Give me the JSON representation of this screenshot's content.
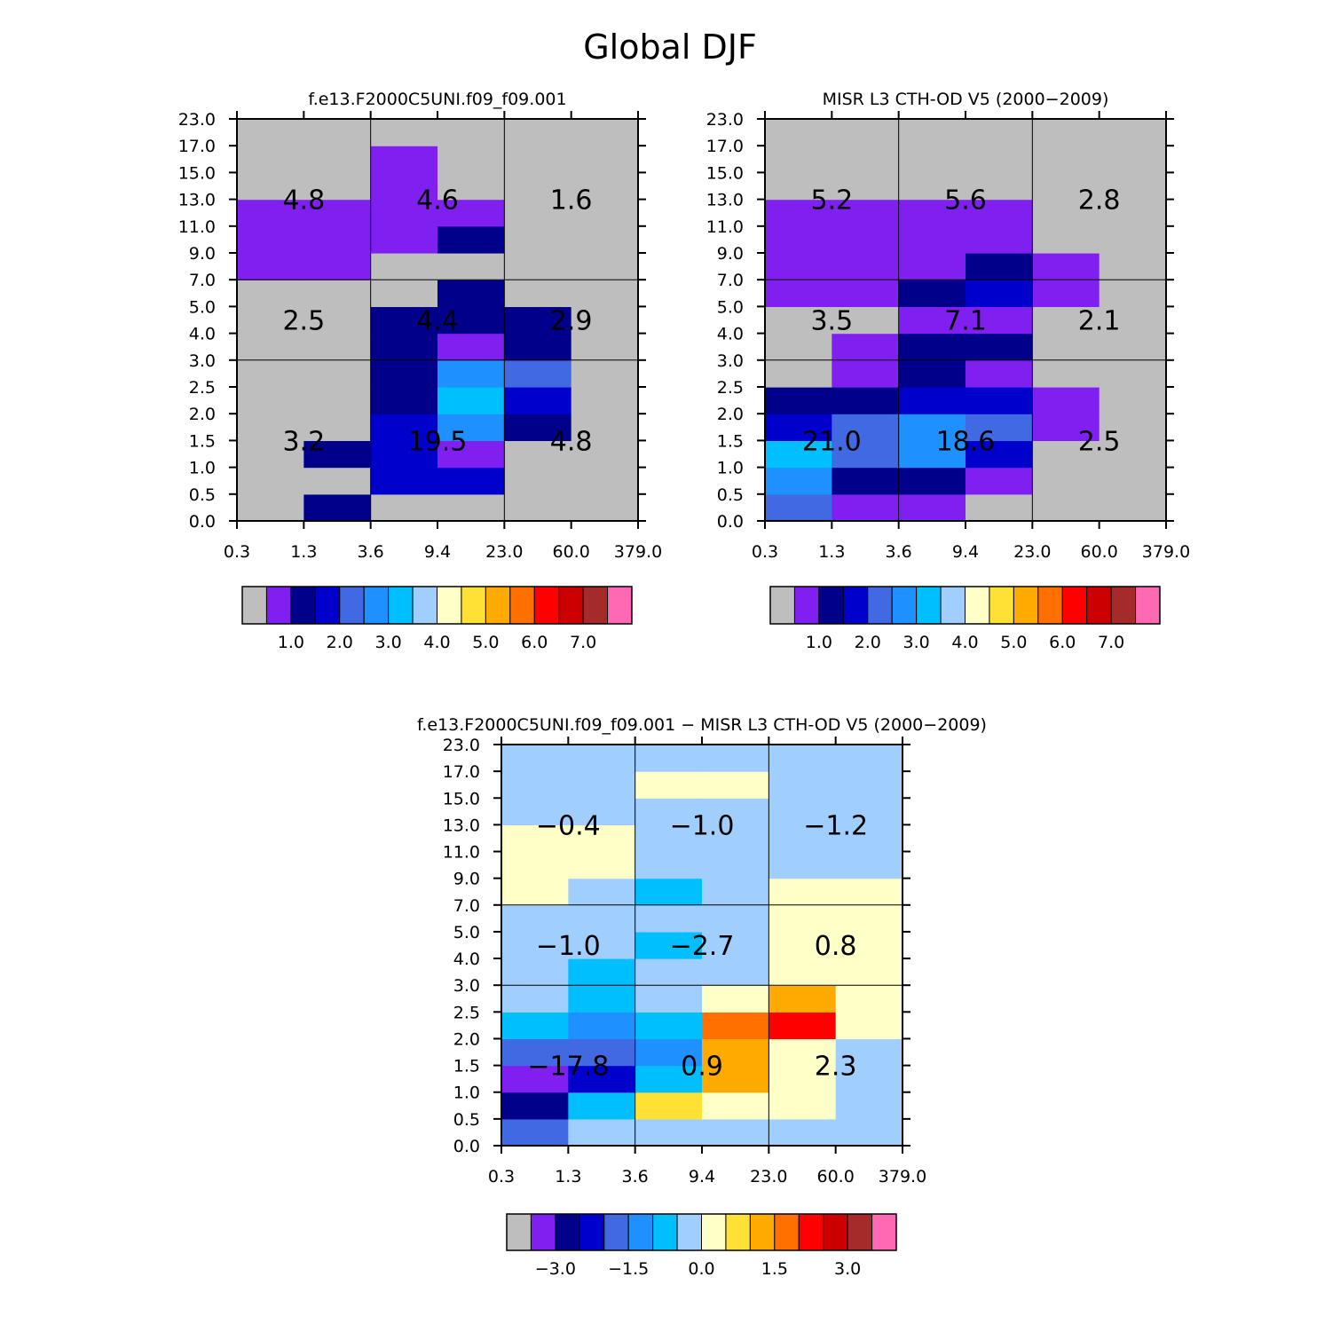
{
  "title": "Global DJF",
  "chart_data": [
    {
      "type": "heatmap",
      "title": "f.e13.F2000C5UNI.f09_f09.001",
      "x_edges": [
        "0.3",
        "1.3",
        "3.6",
        "9.4",
        "23.0",
        "60.0",
        "379.0"
      ],
      "y_edges": [
        "0.0",
        "0.5",
        "1.0",
        "1.5",
        "2.0",
        "2.5",
        "3.0",
        "4.0",
        "5.0",
        "7.0",
        "9.0",
        "11.0",
        "13.0",
        "15.0",
        "17.0",
        "23.0"
      ],
      "cells": [
        [
          0,
          2,
          0,
          0,
          0,
          0
        ],
        [
          0,
          0,
          3,
          3,
          0,
          0
        ],
        [
          0,
          2,
          3,
          1,
          0,
          0
        ],
        [
          0,
          0,
          3,
          5,
          2,
          0
        ],
        [
          0,
          0,
          2,
          6,
          3,
          0
        ],
        [
          0,
          0,
          2,
          5,
          4,
          0
        ],
        [
          0,
          0,
          2,
          1,
          2,
          0
        ],
        [
          0,
          0,
          2,
          2,
          2,
          0
        ],
        [
          0,
          0,
          0,
          2,
          0,
          0
        ],
        [
          1,
          1,
          0,
          0,
          0,
          0
        ],
        [
          1,
          1,
          1,
          2,
          0,
          0
        ],
        [
          1,
          1,
          1,
          1,
          0,
          0
        ],
        [
          0,
          0,
          1,
          0,
          0,
          0
        ],
        [
          0,
          0,
          1,
          0,
          0,
          0
        ],
        [
          0,
          0,
          0,
          0,
          0,
          0
        ]
      ],
      "group_sums": [
        {
          "label": "3.2",
          "col": 0,
          "row": 0
        },
        {
          "label": "19.5",
          "col": 1,
          "row": 0
        },
        {
          "label": "4.8",
          "col": 2,
          "row": 0
        },
        {
          "label": "2.5",
          "col": 0,
          "row": 1
        },
        {
          "label": "4.4",
          "col": 1,
          "row": 1
        },
        {
          "label": "2.9",
          "col": 2,
          "row": 1
        },
        {
          "label": "4.8",
          "col": 0,
          "row": 2
        },
        {
          "label": "4.6",
          "col": 1,
          "row": 2
        },
        {
          "label": "1.6",
          "col": 2,
          "row": 2
        }
      ],
      "colorbar_labels": [
        "1.0",
        "2.0",
        "3.0",
        "4.0",
        "5.0",
        "6.0",
        "7.0"
      ]
    },
    {
      "type": "heatmap",
      "title": "MISR L3 CTH-OD V5 (2000-2009)",
      "x_edges": [
        "0.3",
        "1.3",
        "3.6",
        "9.4",
        "23.0",
        "60.0",
        "379.0"
      ],
      "y_edges": [
        "0.0",
        "0.5",
        "1.0",
        "1.5",
        "2.0",
        "2.5",
        "3.0",
        "4.0",
        "5.0",
        "7.0",
        "9.0",
        "11.0",
        "13.0",
        "15.0",
        "17.0",
        "23.0"
      ],
      "cells": [
        [
          4,
          1,
          1,
          0,
          0,
          0
        ],
        [
          5,
          2,
          2,
          1,
          0,
          0
        ],
        [
          6,
          4,
          5,
          3,
          0,
          0
        ],
        [
          3,
          4,
          5,
          4,
          1,
          0
        ],
        [
          2,
          2,
          3,
          3,
          1,
          0
        ],
        [
          0,
          1,
          2,
          1,
          0,
          0
        ],
        [
          0,
          1,
          2,
          2,
          0,
          0
        ],
        [
          0,
          0,
          1,
          1,
          0,
          0
        ],
        [
          1,
          1,
          2,
          3,
          1,
          0
        ],
        [
          1,
          1,
          1,
          2,
          1,
          0
        ],
        [
          1,
          1,
          1,
          1,
          0,
          0
        ],
        [
          1,
          1,
          1,
          1,
          0,
          0
        ],
        [
          0,
          0,
          0,
          0,
          0,
          0
        ],
        [
          0,
          0,
          0,
          0,
          0,
          0
        ],
        [
          0,
          0,
          0,
          0,
          0,
          0
        ]
      ],
      "group_sums": [
        {
          "label": "21.0",
          "col": 0,
          "row": 0
        },
        {
          "label": "18.6",
          "col": 1,
          "row": 0
        },
        {
          "label": "2.5",
          "col": 2,
          "row": 0
        },
        {
          "label": "3.5",
          "col": 0,
          "row": 1
        },
        {
          "label": "7.1",
          "col": 1,
          "row": 1
        },
        {
          "label": "2.1",
          "col": 2,
          "row": 1
        },
        {
          "label": "5.2",
          "col": 0,
          "row": 2
        },
        {
          "label": "5.6",
          "col": 1,
          "row": 2
        },
        {
          "label": "2.8",
          "col": 2,
          "row": 2
        }
      ],
      "colorbar_labels": [
        "1.0",
        "2.0",
        "3.0",
        "4.0",
        "5.0",
        "6.0",
        "7.0"
      ]
    },
    {
      "type": "heatmap",
      "title": "f.e13.F2000C5UNI.f09_f09.001 - MISR L3 CTH-OD V5 (2000-2009)",
      "x_edges": [
        "0.3",
        "1.3",
        "3.6",
        "9.4",
        "23.0",
        "60.0",
        "379.0"
      ],
      "y_edges": [
        "0.0",
        "0.5",
        "1.0",
        "1.5",
        "2.0",
        "2.5",
        "3.0",
        "4.0",
        "5.0",
        "7.0",
        "9.0",
        "11.0",
        "13.0",
        "15.0",
        "17.0",
        "23.0"
      ],
      "cells": [
        [
          4,
          7,
          7,
          7,
          7,
          7
        ],
        [
          2,
          6,
          9,
          8,
          8,
          7
        ],
        [
          1,
          3,
          6,
          10,
          8,
          7
        ],
        [
          4,
          4,
          5,
          10,
          8,
          7
        ],
        [
          6,
          5,
          6,
          11,
          12,
          8
        ],
        [
          7,
          6,
          7,
          8,
          10,
          8
        ],
        [
          7,
          6,
          7,
          7,
          8,
          8
        ],
        [
          7,
          7,
          6,
          7,
          8,
          8
        ],
        [
          7,
          7,
          7,
          7,
          8,
          8
        ],
        [
          8,
          7,
          6,
          7,
          8,
          8
        ],
        [
          8,
          8,
          7,
          7,
          7,
          7
        ],
        [
          8,
          8,
          7,
          7,
          7,
          7
        ],
        [
          7,
          7,
          7,
          7,
          7,
          7
        ],
        [
          7,
          7,
          8,
          8,
          7,
          7
        ],
        [
          7,
          7,
          7,
          7,
          7,
          7
        ]
      ],
      "group_sums": [
        {
          "label": "-17.8",
          "col": 0,
          "row": 0
        },
        {
          "label": "0.9",
          "col": 1,
          "row": 0
        },
        {
          "label": "2.3",
          "col": 2,
          "row": 0
        },
        {
          "label": "-1.0",
          "col": 0,
          "row": 1
        },
        {
          "label": "-2.7",
          "col": 1,
          "row": 1
        },
        {
          "label": "0.8",
          "col": 2,
          "row": 1
        },
        {
          "label": "-0.4",
          "col": 0,
          "row": 2
        },
        {
          "label": "-1.0",
          "col": 1,
          "row": 2
        },
        {
          "label": "-1.2",
          "col": 2,
          "row": 2
        }
      ],
      "colorbar_labels": [
        "-3.0",
        "-1.5",
        "0.0",
        "1.5",
        "3.0"
      ]
    }
  ],
  "palette": [
    "#bebebe",
    "#8020f0",
    "#00008b",
    "#0000cd",
    "#4169e1",
    "#1e90ff",
    "#00bfff",
    "#a0cfff",
    "#ffffc8",
    "#ffe135",
    "#ffaa00",
    "#ff7000",
    "#ff0000",
    "#cd0000",
    "#a52a2a",
    "#ff69b4"
  ]
}
